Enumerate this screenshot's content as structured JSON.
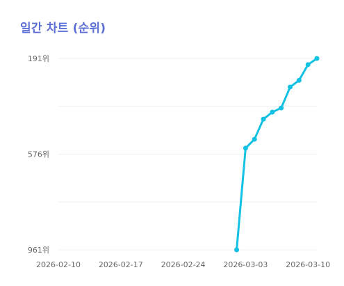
{
  "chart_data": {
    "type": "line",
    "title": "일간 차트 (순위)",
    "xlabel": "",
    "ylabel": "",
    "y_inverted": true,
    "ylim": [
      961,
      191
    ],
    "y_ticks": [
      191,
      576,
      961
    ],
    "y_tick_labels": [
      "191위",
      "576위",
      "961위"
    ],
    "x_ticks": [
      "2026-02-10",
      "2026-02-17",
      "2026-02-24",
      "2026-03-03",
      "2026-03-10"
    ],
    "xlim": [
      "2026-02-10",
      "2026-03-11"
    ],
    "grid": "horizontal",
    "legend": "none",
    "color": "#13c1e3",
    "series": [
      {
        "x": [
          "2026-03-02",
          "2026-03-03",
          "2026-03-04",
          "2026-03-05",
          "2026-03-06",
          "2026-03-07",
          "2026-03-08",
          "2026-03-09",
          "2026-03-10",
          "2026-03-11"
        ],
        "values": [
          961,
          552,
          516,
          435,
          407,
          390,
          306,
          279,
          216,
          191
        ]
      }
    ]
  }
}
